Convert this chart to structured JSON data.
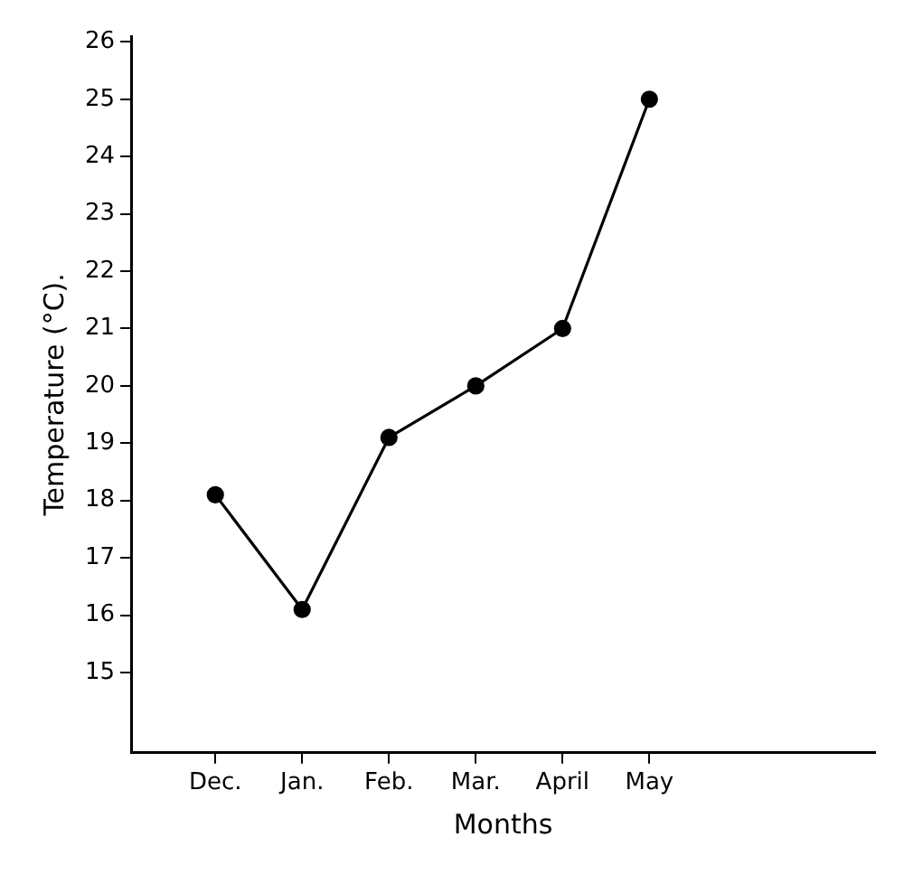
{
  "chart_data": {
    "type": "line",
    "xlabel": "Months",
    "ylabel": "Temperature (°C).",
    "categories": [
      "Dec.",
      "Jan.",
      "Feb.",
      "Mar.",
      "April",
      "May"
    ],
    "series": [
      {
        "color": "#000000",
        "values": [
          18.1,
          16.1,
          19.1,
          20,
          21,
          25
        ]
      }
    ],
    "ylim": [
      13.6,
      26.1
    ],
    "yticks": [
      15,
      16,
      17,
      18,
      19,
      20,
      21,
      22,
      23,
      24,
      25,
      26
    ],
    "grid": false,
    "legend": false,
    "marker": "circle",
    "line_style": "solid"
  }
}
